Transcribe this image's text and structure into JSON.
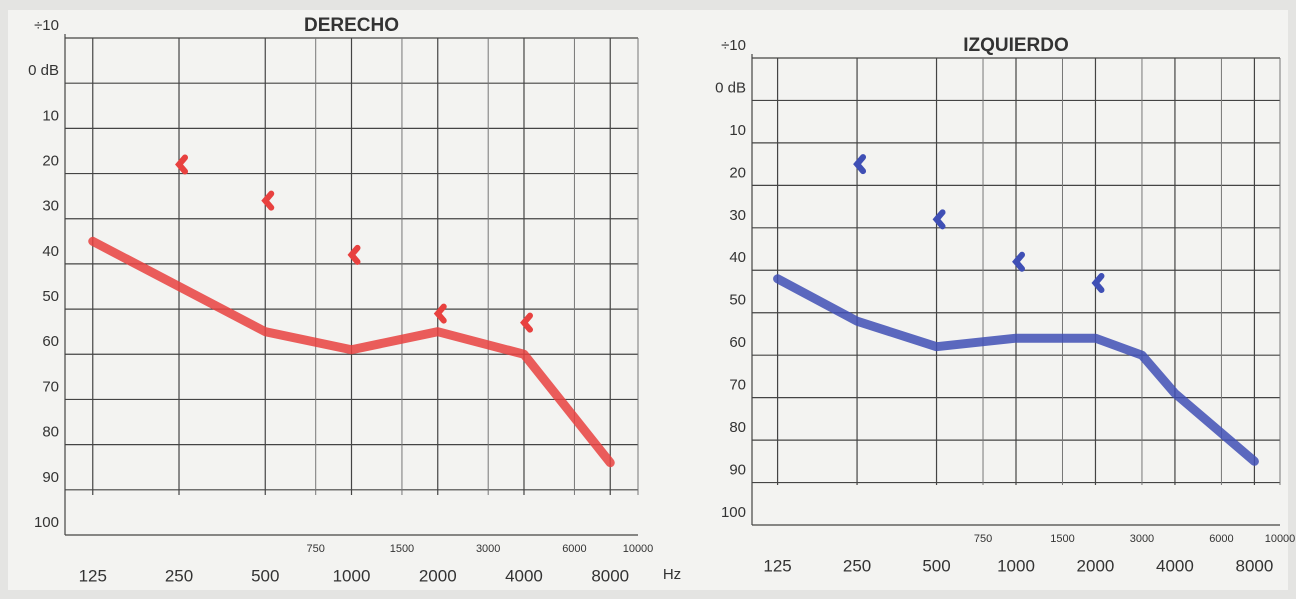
{
  "chart_data": [
    {
      "type": "line",
      "title": "DERECHO",
      "x_unit": "Hz",
      "xlim": [
        100,
        10000
      ],
      "log_x": true,
      "xticks": [
        125,
        250,
        500,
        1000,
        2000,
        4000,
        8000
      ],
      "xticks_minor": [
        750,
        1500,
        3000,
        6000,
        10000
      ],
      "ylim": [
        -10,
        100
      ],
      "y_inverted": true,
      "yticks": [
        {
          "value": -10,
          "label": "÷10"
        },
        {
          "value": 0,
          "label": "0 dB"
        },
        10,
        20,
        30,
        40,
        50,
        60,
        70,
        80,
        90,
        100
      ],
      "grid": true,
      "series": [
        {
          "color": "#e8413f",
          "style": "line",
          "x": [
            125,
            250,
            500,
            1000,
            2000,
            4000,
            8000
          ],
          "values": [
            35,
            45,
            55,
            59,
            55,
            60,
            84
          ]
        },
        {
          "color": "#e8413f",
          "style": "marker",
          "x": [
            250,
            500,
            1000,
            2000,
            4000
          ],
          "values": [
            18,
            26,
            38,
            51,
            53
          ]
        }
      ]
    },
    {
      "type": "line",
      "title": "IZQUIERDO",
      "xlim": [
        100,
        10000
      ],
      "log_x": true,
      "xticks": [
        125,
        250,
        500,
        1000,
        2000,
        4000,
        8000
      ],
      "xticks_minor": [
        750,
        1500,
        3000,
        6000,
        10000
      ],
      "ylim": [
        -10,
        100
      ],
      "y_inverted": true,
      "yticks": [
        {
          "value": -10,
          "label": "÷10"
        },
        {
          "value": 0,
          "label": "0 dB"
        },
        10,
        20,
        30,
        40,
        50,
        60,
        70,
        80,
        90,
        100
      ],
      "grid": true,
      "series": [
        {
          "color": "#3f4fb5",
          "style": "line",
          "x": [
            125,
            250,
            500,
            1000,
            2000,
            3000,
            4000,
            8000
          ],
          "values": [
            42,
            52,
            58,
            56,
            56,
            60,
            69,
            85
          ]
        },
        {
          "color": "#3f4fb5",
          "style": "marker",
          "x": [
            250,
            500,
            1000,
            2000
          ],
          "values": [
            15,
            28,
            38,
            43
          ]
        }
      ]
    }
  ]
}
